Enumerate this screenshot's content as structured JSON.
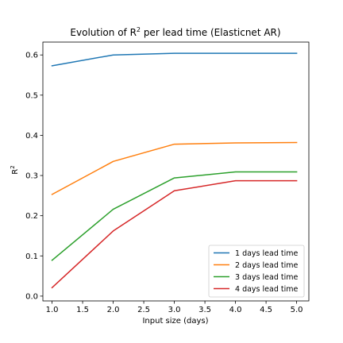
{
  "chart_data": {
    "type": "line",
    "title": {
      "prefix": "Evolution of R",
      "sup": "2",
      "suffix": " per lead time (Elasticnet AR)"
    },
    "xlabel": "Input size (days)",
    "ylabel": {
      "base": "R",
      "sup": "2"
    },
    "xlim": [
      0.85,
      5.2
    ],
    "ylim": [
      -0.012,
      0.632
    ],
    "x_ticks": [
      "1.0",
      "1.5",
      "2.0",
      "2.5",
      "3.0",
      "3.5",
      "4.0",
      "4.5",
      "5.0"
    ],
    "y_ticks": [
      "0.0",
      "0.1",
      "0.2",
      "0.3",
      "0.4",
      "0.5",
      "0.6"
    ],
    "x": [
      1,
      2,
      3,
      4,
      5
    ],
    "series": [
      {
        "name": "1 days lead time",
        "color": "#1f77b4",
        "values": [
          0.573,
          0.6,
          0.604,
          0.604,
          0.604
        ]
      },
      {
        "name": "2 days lead time",
        "color": "#ff7f0e",
        "values": [
          0.253,
          0.335,
          0.378,
          0.381,
          0.382
        ]
      },
      {
        "name": "3 days lead time",
        "color": "#2ca02c",
        "values": [
          0.089,
          0.216,
          0.294,
          0.309,
          0.309
        ]
      },
      {
        "name": "4 days lead time",
        "color": "#d62728",
        "values": [
          0.021,
          0.162,
          0.262,
          0.287,
          0.287
        ]
      }
    ],
    "legend_position": "lower-right",
    "grid": false
  }
}
